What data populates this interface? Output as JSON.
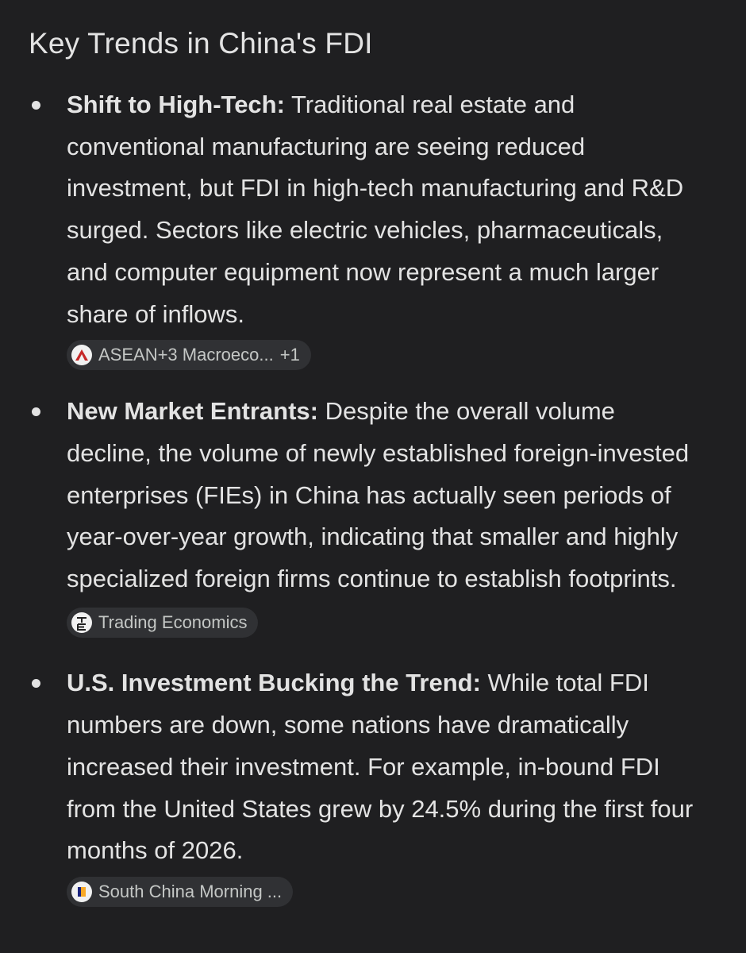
{
  "header": {
    "title": "Key Trends in China's FDI"
  },
  "items": [
    {
      "label": "Shift to High-Tech:",
      "text": "Traditional real estate and conventional manufacturing are seeing reduced investment, but FDI in high-tech manufacturing and R&D surged. Sectors like electric vehicles, pharmaceuticals, and computer equipment now represent a much larger share of inflows.",
      "source": {
        "name": "ASEAN+3 Macroeco...",
        "extra": "+1"
      }
    },
    {
      "label": "New Market Entrants:",
      "text": "Despite the overall volume decline, the volume of newly established foreign-invested enterprises (FIEs) in China has actually seen periods of year-over-year growth, indicating that smaller and highly specialized foreign firms continue to establish footprints.",
      "source": {
        "name": "Trading Economics"
      }
    },
    {
      "label": "U.S. Investment Bucking the Trend:",
      "text": "While total FDI numbers are down, some nations have dramatically increased their investment. For example, in-bound FDI from the United States grew by 24.5% during the first four months of 2026.",
      "source": {
        "name": "South China Morning ..."
      }
    }
  ]
}
